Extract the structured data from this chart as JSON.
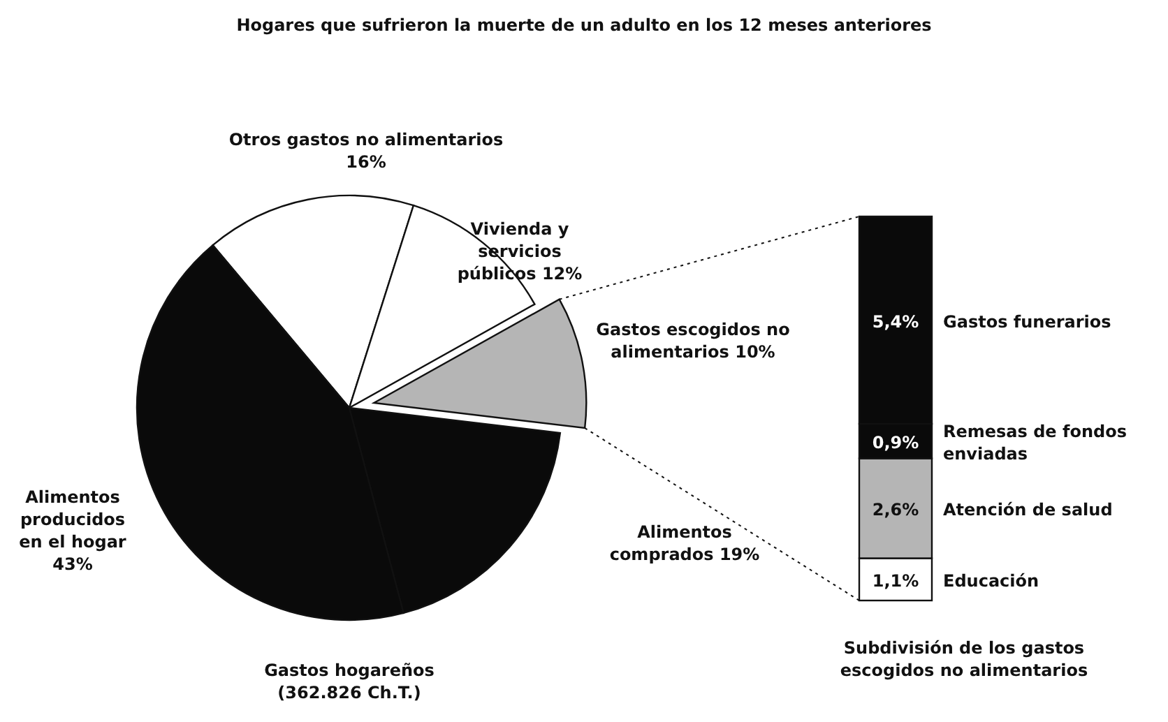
{
  "chart_data": [
    {
      "type": "pie",
      "title": "Hogares que sufrieron la muerte de un adulto en los 12 meses anteriores",
      "xlabel": "Gastos hogareños (362.826 Ch.T.)",
      "categories": [
        "Otros gastos no alimentarios",
        "Vivienda y servicios públicos",
        "Gastos escogidos no alimentarios",
        "Alimentos comprados",
        "Alimentos producidos en el hogar"
      ],
      "values": [
        16,
        12,
        10,
        19,
        43
      ],
      "value_labels": [
        "16%",
        "12%",
        "10%",
        "19%",
        "43%"
      ],
      "colors": [
        "#ffffff",
        "#ffffff",
        "#b5b5b5",
        "#0a0a0a",
        "#0a0a0a"
      ]
    },
    {
      "type": "bar",
      "stacked": true,
      "xlabel": "Subdivisión de los gastos escogidos no alimentarios",
      "categories": [
        null
      ],
      "series": [
        {
          "name": "Educación",
          "color": "#ffffff",
          "values": [
            1.1
          ],
          "value_labels": [
            "1,1%"
          ]
        },
        {
          "name": "Atención de salud",
          "color": "#b5b5b5",
          "values": [
            2.6
          ],
          "value_labels": [
            "2,6%"
          ]
        },
        {
          "name": "Remesas de fondos enviadas",
          "color": "#0a0a0a",
          "values": [
            0.9
          ],
          "value_labels": [
            "0,9%"
          ]
        },
        {
          "name": "Gastos funerarios",
          "color": "#0a0a0a",
          "values": [
            5.4
          ],
          "value_labels": [
            "5,4%"
          ]
        }
      ]
    }
  ]
}
